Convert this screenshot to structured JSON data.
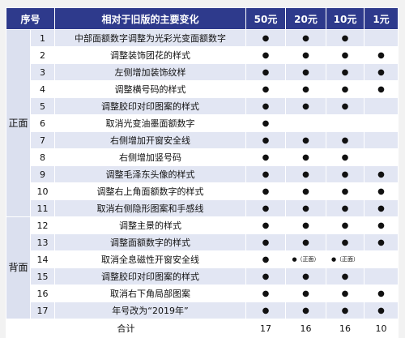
{
  "header": {
    "seq": "序号",
    "change": "相对于旧版的主要变化",
    "denoms": [
      "50元",
      "20元",
      "10元",
      "1元"
    ]
  },
  "groups": [
    {
      "label": "正面",
      "rows": [
        {
          "no": "1",
          "desc": "中部面额数字调整为光彩光变面额数字",
          "marks": [
            "●",
            "●",
            "●",
            ""
          ]
        },
        {
          "no": "2",
          "desc": "调整装饰团花的样式",
          "marks": [
            "●",
            "●",
            "●",
            "●"
          ]
        },
        {
          "no": "3",
          "desc": "左侧增加装饰纹样",
          "marks": [
            "●",
            "●",
            "●",
            "●"
          ]
        },
        {
          "no": "4",
          "desc": "调整横号码的样式",
          "marks": [
            "●",
            "●",
            "●",
            "●"
          ]
        },
        {
          "no": "5",
          "desc": "调整胶印对印图案的样式",
          "marks": [
            "●",
            "●",
            "●",
            ""
          ]
        },
        {
          "no": "6",
          "desc": "取消光变油墨面额数字",
          "marks": [
            "●",
            "",
            "",
            ""
          ]
        },
        {
          "no": "7",
          "desc": "右侧增加开窗安全线",
          "marks": [
            "●",
            "●",
            "●",
            ""
          ]
        },
        {
          "no": "8",
          "desc": "右侧增加竖号码",
          "marks": [
            "●",
            "●",
            "●",
            ""
          ]
        },
        {
          "no": "9",
          "desc": "调整毛泽东头像的样式",
          "marks": [
            "●",
            "●",
            "●",
            "●"
          ]
        },
        {
          "no": "10",
          "desc": "调整右上角面额数字的样式",
          "marks": [
            "●",
            "●",
            "●",
            "●"
          ]
        },
        {
          "no": "11",
          "desc": "取消右侧隐形图案和手感线",
          "marks": [
            "●",
            "●",
            "●",
            "●"
          ]
        }
      ]
    },
    {
      "label": "背面",
      "rows": [
        {
          "no": "12",
          "desc": "调整主景的样式",
          "marks": [
            "●",
            "●",
            "●",
            "●"
          ]
        },
        {
          "no": "13",
          "desc": "调整面额数字的样式",
          "marks": [
            "●",
            "●",
            "●",
            "●"
          ]
        },
        {
          "no": "14",
          "desc": "取消全息磁性开窗安全线",
          "marks": [
            "●",
            "●（正面）",
            "●（正面）",
            ""
          ]
        },
        {
          "no": "15",
          "desc": "调整胶印对印图案的样式",
          "marks": [
            "●",
            "●",
            "●",
            ""
          ]
        },
        {
          "no": "16",
          "desc": "取消右下角局部图案",
          "marks": [
            "●",
            "●",
            "●",
            "●"
          ]
        },
        {
          "no": "17",
          "desc": "年号改为“2019年”",
          "marks": [
            "●",
            "●",
            "●",
            "●"
          ]
        }
      ]
    }
  ],
  "footer": {
    "label": "合计",
    "totals": [
      "17",
      "16",
      "16",
      "10"
    ]
  }
}
